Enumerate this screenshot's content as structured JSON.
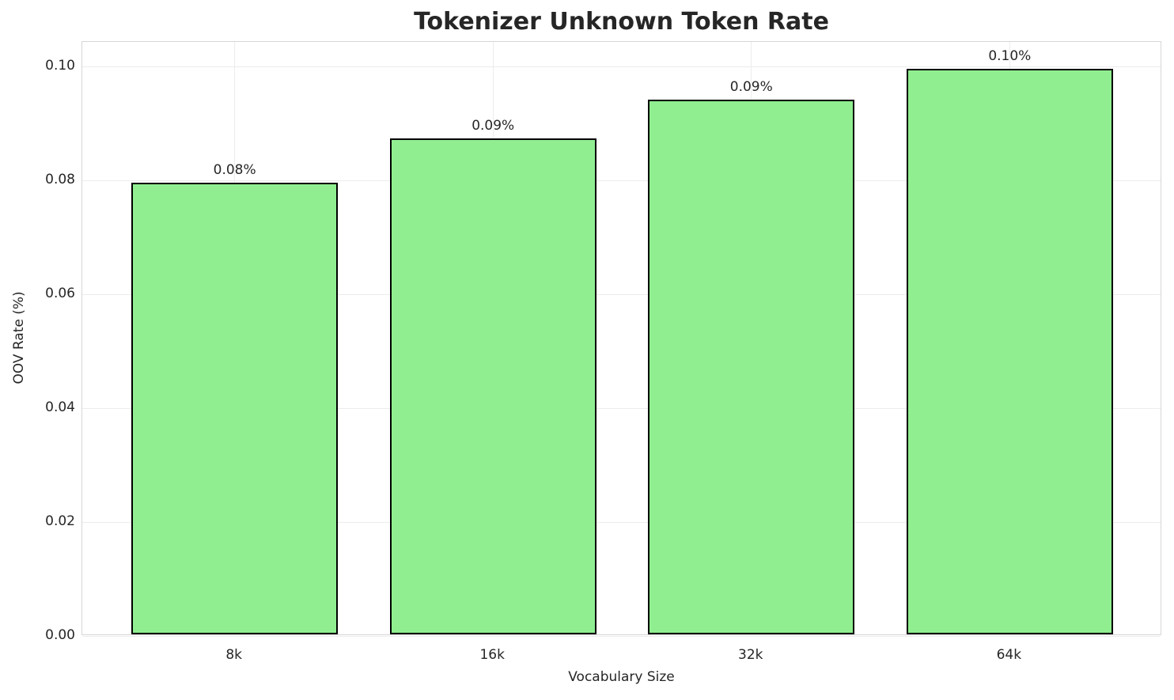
{
  "figure": {
    "title": "Tokenizer Unknown Token Rate",
    "xlabel": "Vocabulary Size",
    "ylabel": "OOV Rate (%)"
  },
  "chart_data": {
    "type": "bar",
    "title": "Tokenizer Unknown Token Rate",
    "xlabel": "Vocabulary Size",
    "ylabel": "OOV Rate (%)",
    "categories": [
      "8k",
      "16k",
      "32k",
      "64k"
    ],
    "values": [
      0.0794,
      0.0871,
      0.0939,
      0.0994
    ],
    "bar_labels": [
      "0.08%",
      "0.09%",
      "0.09%",
      "0.10%"
    ],
    "ytick_values": [
      0.0,
      0.02,
      0.04,
      0.06,
      0.08,
      0.1
    ],
    "ytick_labels": [
      "0.00",
      "0.02",
      "0.04",
      "0.06",
      "0.08",
      "0.10"
    ],
    "ylim": [
      0,
      0.10437
    ],
    "xlim": [
      -0.59,
      3.59
    ],
    "bar_width": 0.8,
    "grid": true,
    "legend": false,
    "colors": {
      "bar_fill": "#90EE90",
      "bar_edge": "#000000",
      "grid": "#ececec",
      "spine": "#d6d6d6",
      "text": "#262626",
      "background": "#ffffff"
    }
  }
}
